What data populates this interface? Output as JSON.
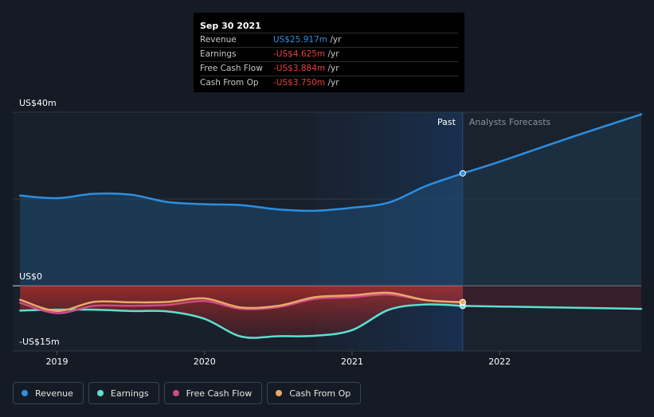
{
  "tooltip": {
    "date": "Sep 30 2021",
    "rows": [
      {
        "label": "Revenue",
        "value": "US$25.917m",
        "unit": "/yr",
        "color": "#2d8fe0"
      },
      {
        "label": "Earnings",
        "value": "-US$4.625m",
        "unit": "/yr",
        "color": "#e8413d"
      },
      {
        "label": "Free Cash Flow",
        "value": "-US$3.884m",
        "unit": "/yr",
        "color": "#e8413d"
      },
      {
        "label": "Cash From Op",
        "value": "-US$3.750m",
        "unit": "/yr",
        "color": "#e8413d"
      }
    ]
  },
  "markers": {
    "past": "Past",
    "forecast": "Analysts Forecasts"
  },
  "legend": [
    {
      "label": "Revenue",
      "color": "#2d8fe0"
    },
    {
      "label": "Earnings",
      "color": "#5ee0cf"
    },
    {
      "label": "Free Cash Flow",
      "color": "#cf4a86"
    },
    {
      "label": "Cash From Op",
      "color": "#e8a96a"
    }
  ],
  "chart_data": {
    "type": "line",
    "title": "",
    "xlabel": "",
    "ylabel": "",
    "x_ticks": [
      "2019",
      "2020",
      "2021",
      "2022"
    ],
    "y_ticks": [
      "US$40m",
      "US$0",
      "-US$15m"
    ],
    "ylim": [
      -15,
      40
    ],
    "xlim": [
      2018.7,
      2022.96
    ],
    "past_start": 2020.75,
    "past_end": 2021.75,
    "series": [
      {
        "name": "Revenue",
        "color": "#2d8fe0",
        "x": [
          2018.75,
          2019.0,
          2019.25,
          2019.5,
          2019.75,
          2020.0,
          2020.25,
          2020.5,
          2020.75,
          2021.0,
          2021.25,
          2021.5,
          2021.75
        ],
        "y": [
          20.8,
          20.2,
          21.2,
          21.0,
          19.3,
          18.8,
          18.6,
          17.6,
          17.3,
          18.0,
          19.2,
          23.0,
          25.917
        ]
      },
      {
        "name": "Revenue Forecast",
        "color": "#2d8fe0",
        "forecast": true,
        "x": [
          2021.75,
          2022.0,
          2022.5,
          2022.96
        ],
        "y": [
          25.917,
          28.6,
          34.4,
          39.5
        ]
      },
      {
        "name": "Earnings",
        "color": "#5ee0cf",
        "x": [
          2018.75,
          2019.0,
          2019.25,
          2019.5,
          2019.75,
          2020.0,
          2020.25,
          2020.5,
          2020.75,
          2021.0,
          2021.25,
          2021.5,
          2021.75
        ],
        "y": [
          -5.7,
          -5.5,
          -5.5,
          -5.8,
          -5.9,
          -7.6,
          -11.7,
          -11.6,
          -11.5,
          -10.2,
          -5.5,
          -4.3,
          -4.625
        ]
      },
      {
        "name": "Earnings Forecast",
        "color": "#5ee0cf",
        "forecast": true,
        "x": [
          2021.75,
          2022.96
        ],
        "y": [
          -4.625,
          -5.3
        ]
      },
      {
        "name": "Free Cash Flow",
        "color": "#cf4a86",
        "x": [
          2018.75,
          2019.0,
          2019.25,
          2019.5,
          2019.75,
          2020.0,
          2020.25,
          2020.5,
          2020.75,
          2021.0,
          2021.25,
          2021.5,
          2021.75
        ],
        "y": [
          -3.9,
          -6.3,
          -4.6,
          -4.6,
          -4.4,
          -3.5,
          -5.3,
          -4.9,
          -3.0,
          -2.6,
          -2.0,
          -3.3,
          -3.884
        ]
      },
      {
        "name": "Cash From Op",
        "color": "#e8a96a",
        "x": [
          2018.75,
          2019.0,
          2019.25,
          2019.5,
          2019.75,
          2020.0,
          2020.25,
          2020.5,
          2020.75,
          2021.0,
          2021.25,
          2021.5,
          2021.75
        ],
        "y": [
          -3.2,
          -5.8,
          -3.7,
          -3.8,
          -3.7,
          -2.9,
          -5.0,
          -4.6,
          -2.6,
          -2.2,
          -1.6,
          -3.3,
          -3.75
        ]
      }
    ]
  }
}
